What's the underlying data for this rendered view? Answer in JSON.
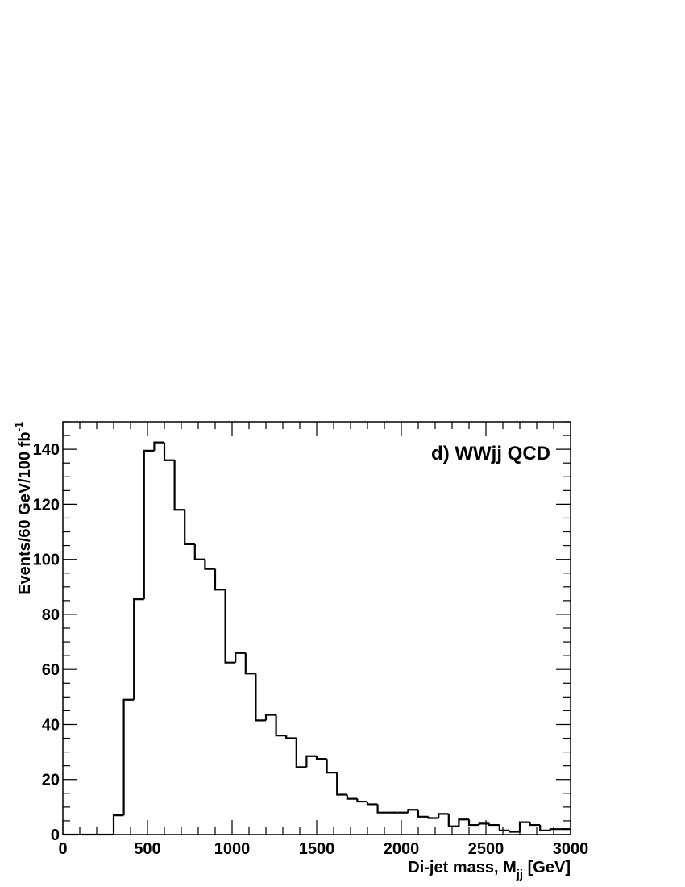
{
  "chart_data": {
    "type": "histogram",
    "annotation": "d) WWjj QCD",
    "x_label": [
      "Di-jet mass, M",
      "jj",
      " [GeV]"
    ],
    "y_label": [
      "Events/60 GeV/100 fb",
      "-1"
    ],
    "bins": [
      0,
      60,
      120,
      180,
      240,
      300,
      360,
      420,
      480,
      540,
      600,
      660,
      720,
      780,
      840,
      900,
      960,
      1020,
      1080,
      1140,
      1200,
      1260,
      1320,
      1380,
      1440,
      1500,
      1560,
      1620,
      1680,
      1740,
      1800,
      1860,
      1920,
      1980,
      2040,
      2100,
      2160,
      2220,
      2280,
      2340,
      2400,
      2460,
      2520,
      2580,
      2640,
      2700,
      2760,
      2820,
      2880,
      2940,
      3000
    ],
    "values": [
      0,
      0,
      0,
      0,
      0,
      7,
      49,
      85.5,
      139.5,
      142.5,
      136,
      118,
      105.5,
      100,
      96.5,
      89,
      62.5,
      66,
      58.5,
      41.5,
      43.5,
      36,
      35,
      24.5,
      28.5,
      27.5,
      22.5,
      14.5,
      13,
      12,
      11,
      8,
      8,
      8,
      9,
      6.5,
      6,
      7.5,
      3,
      5.5,
      3.5,
      4,
      3.5,
      1.5,
      1,
      4.5,
      3.5,
      1.5,
      2,
      2
    ],
    "color": "#000000",
    "xlim": [
      0,
      3000
    ],
    "xticks": [
      0,
      500,
      1000,
      1500,
      2000,
      2500,
      3000
    ],
    "ylim": [
      0,
      150
    ],
    "yticks": [
      0,
      20,
      40,
      60,
      80,
      100,
      120,
      140
    ],
    "minor_divisions": {
      "x": 5,
      "y": 4
    }
  }
}
